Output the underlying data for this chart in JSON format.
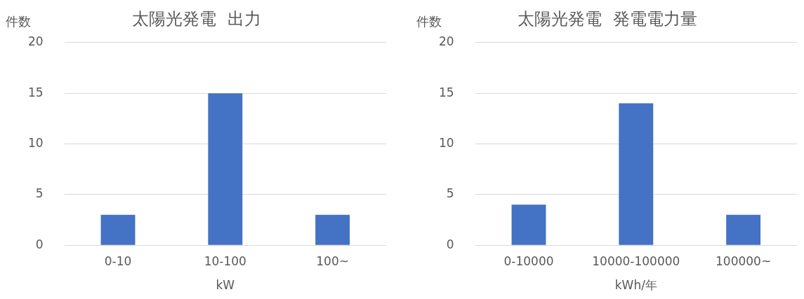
{
  "chart_data": [
    {
      "type": "bar",
      "title": "太陽光発電  出力",
      "ylabel": "件数",
      "xlabel": "kW",
      "categories": [
        "0-10",
        "10-100",
        "100~"
      ],
      "values": [
        3,
        15,
        3
      ],
      "color": "#4472c4",
      "ylim": [
        0,
        20
      ],
      "yticks": [
        0,
        5,
        10,
        15,
        20
      ],
      "grid": "y",
      "legend": false
    },
    {
      "type": "bar",
      "title": "太陽光発電  発電電力量",
      "ylabel": "件数",
      "xlabel": "kWh/年",
      "categories": [
        "0-10000",
        "10000-100000",
        "100000~"
      ],
      "values": [
        4,
        14,
        3
      ],
      "color": "#4472c4",
      "ylim": [
        0,
        20
      ],
      "yticks": [
        0,
        5,
        10,
        15,
        20
      ],
      "grid": "y",
      "legend": false
    }
  ]
}
